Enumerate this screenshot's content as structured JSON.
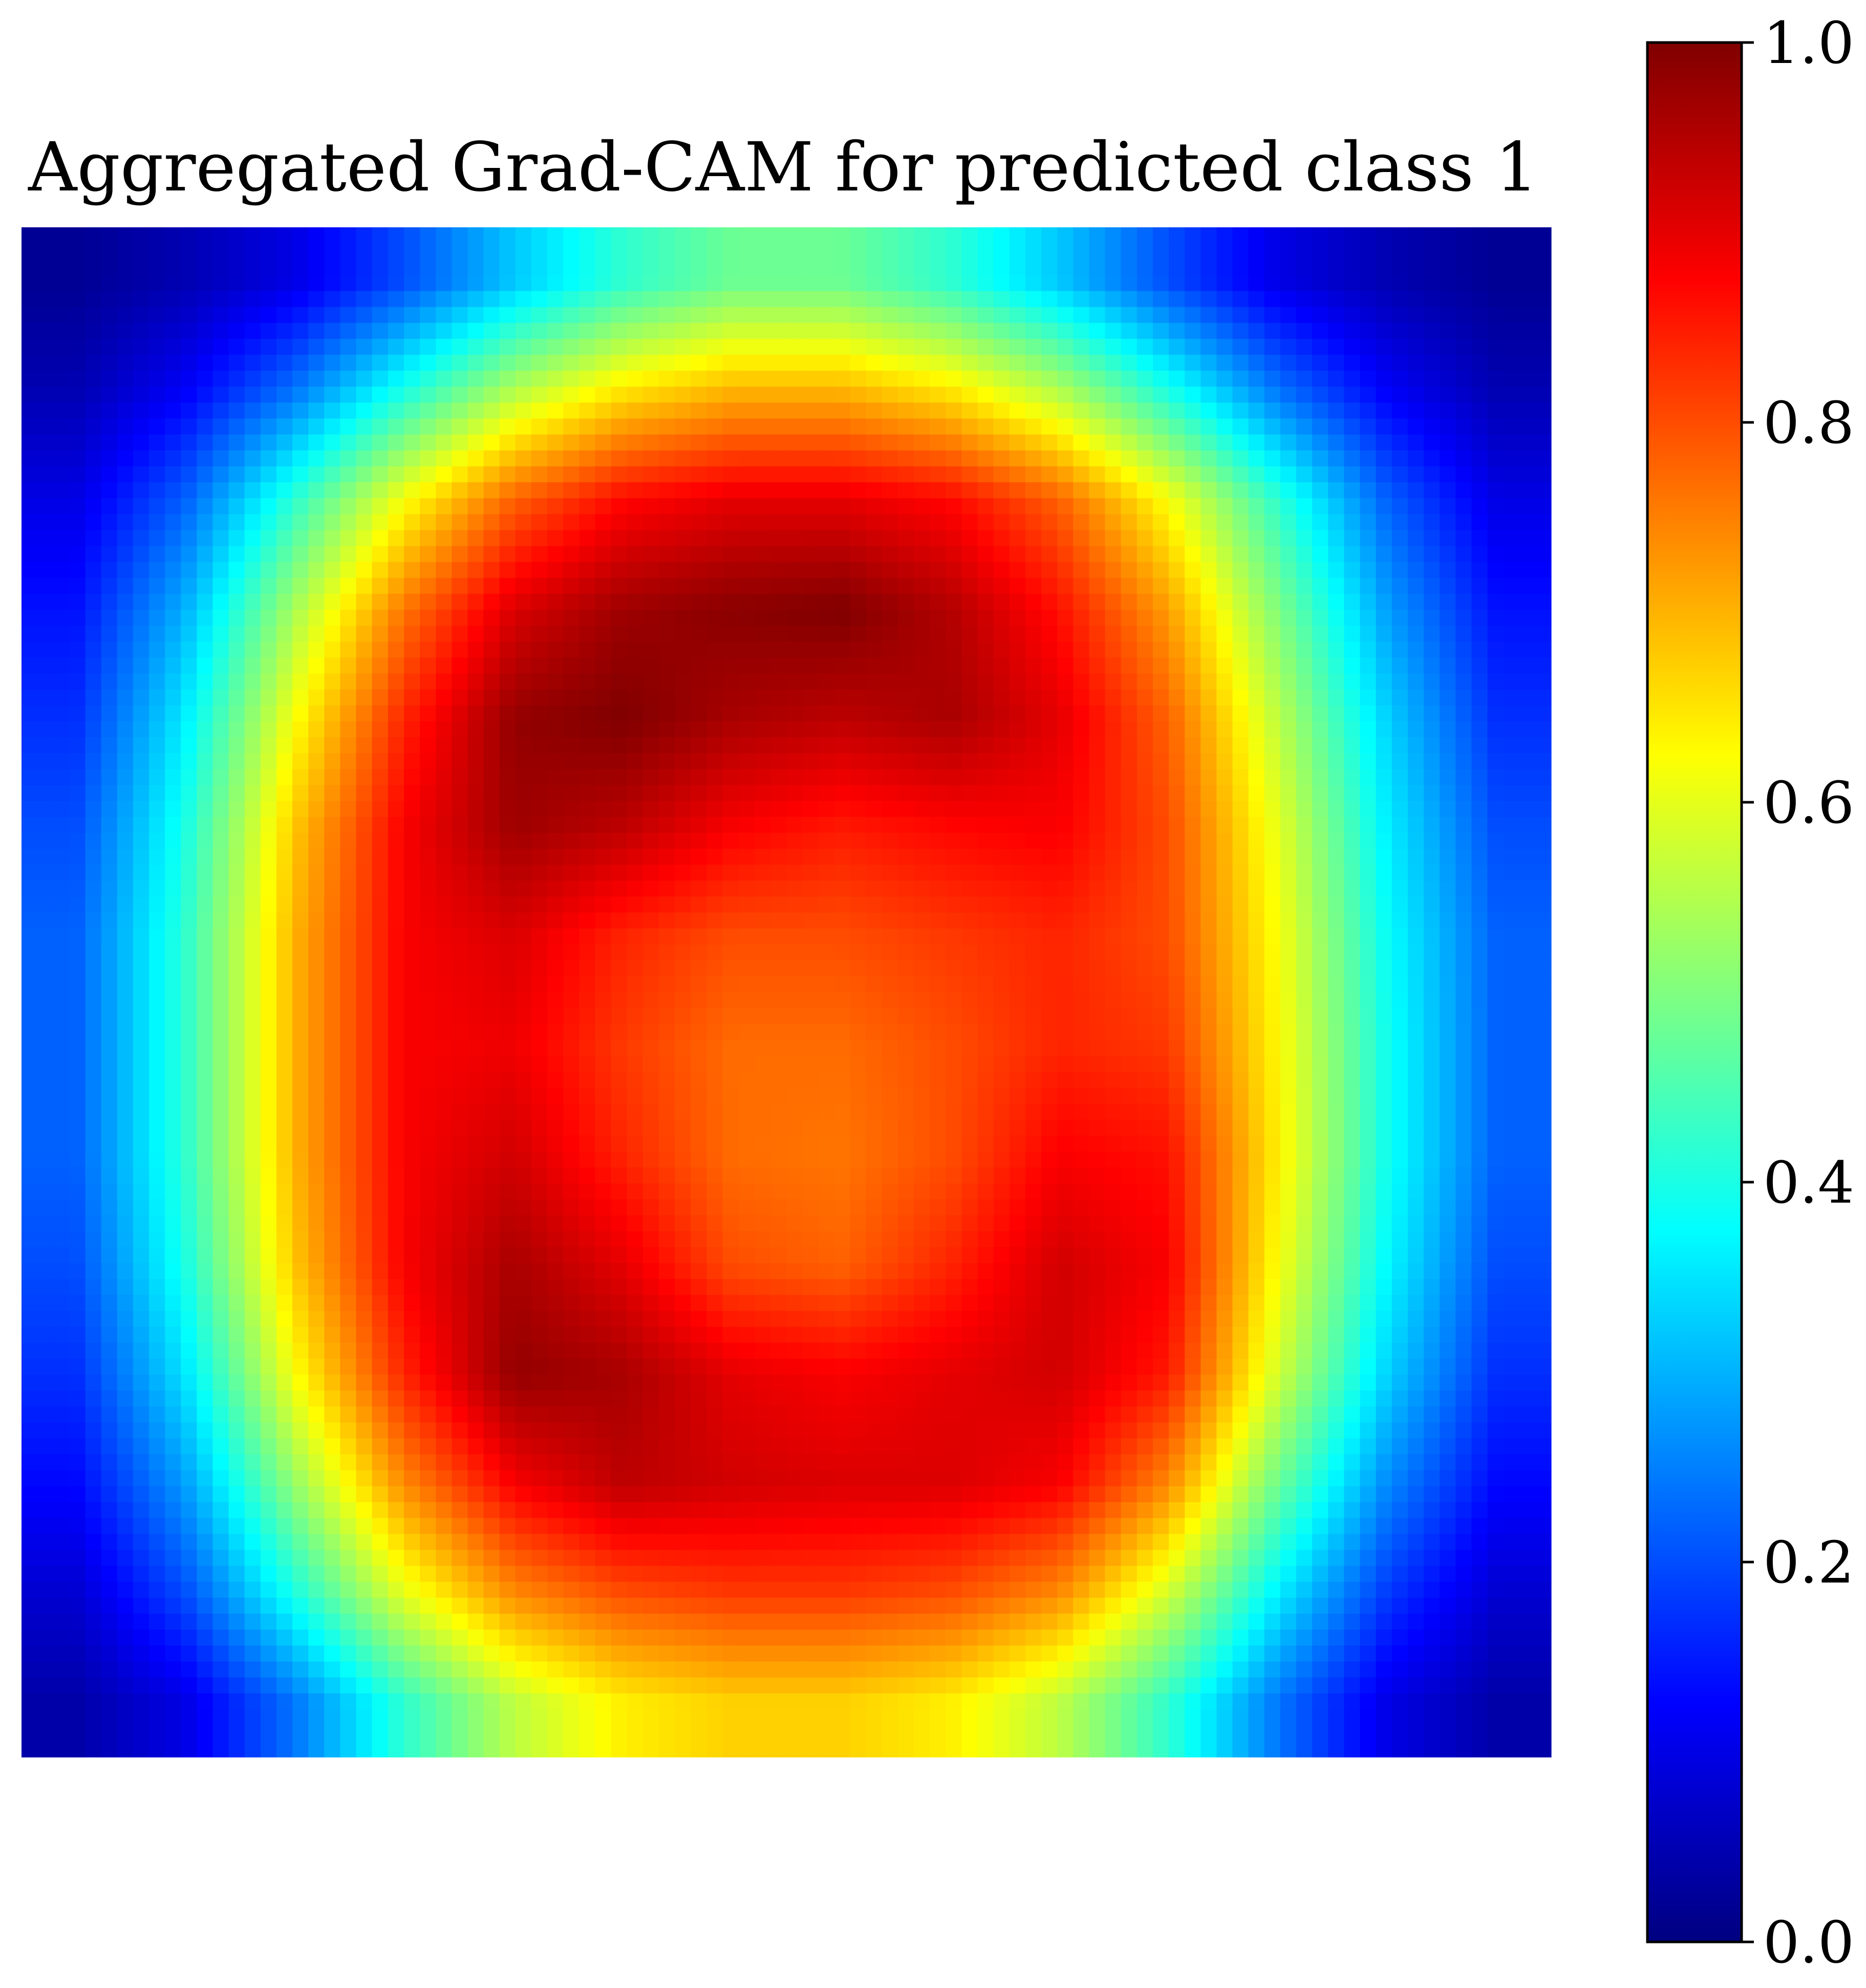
{
  "chart_data": {
    "type": "heatmap",
    "title": "Aggregated Grad-CAM for predicted class 1",
    "xlabel": "",
    "ylabel": "",
    "axes_visible": false,
    "grid": false,
    "colormap": "jet",
    "colorbar": {
      "range": [
        0.0,
        1.0
      ],
      "ticks": [
        0.0,
        0.2,
        0.4,
        0.6,
        0.8,
        1.0
      ],
      "tick_labels": [
        "0.0",
        "0.2",
        "0.4",
        "0.6",
        "0.8",
        "1.0"
      ],
      "placement": "right"
    },
    "grid_size": [
      14,
      14
    ],
    "values": [
      [
        0.02,
        0.05,
        0.1,
        0.2,
        0.32,
        0.42,
        0.48,
        0.48,
        0.42,
        0.32,
        0.2,
        0.1,
        0.05,
        0.02
      ],
      [
        0.05,
        0.12,
        0.24,
        0.4,
        0.55,
        0.65,
        0.7,
        0.7,
        0.65,
        0.55,
        0.4,
        0.24,
        0.12,
        0.05
      ],
      [
        0.1,
        0.22,
        0.42,
        0.62,
        0.78,
        0.87,
        0.9,
        0.9,
        0.87,
        0.78,
        0.62,
        0.42,
        0.22,
        0.1
      ],
      [
        0.14,
        0.3,
        0.54,
        0.76,
        0.91,
        0.97,
        0.99,
        1.0,
        0.95,
        0.86,
        0.72,
        0.5,
        0.28,
        0.14
      ],
      [
        0.17,
        0.36,
        0.62,
        0.84,
        0.98,
        1.0,
        0.96,
        0.94,
        0.96,
        0.9,
        0.78,
        0.56,
        0.33,
        0.17
      ],
      [
        0.2,
        0.4,
        0.68,
        0.88,
        0.97,
        0.94,
        0.88,
        0.85,
        0.87,
        0.88,
        0.8,
        0.6,
        0.36,
        0.2
      ],
      [
        0.22,
        0.42,
        0.7,
        0.88,
        0.91,
        0.84,
        0.8,
        0.8,
        0.82,
        0.84,
        0.8,
        0.62,
        0.38,
        0.22
      ],
      [
        0.22,
        0.42,
        0.7,
        0.88,
        0.89,
        0.82,
        0.77,
        0.77,
        0.8,
        0.84,
        0.82,
        0.63,
        0.39,
        0.22
      ],
      [
        0.22,
        0.42,
        0.7,
        0.88,
        0.92,
        0.84,
        0.77,
        0.76,
        0.8,
        0.88,
        0.86,
        0.64,
        0.39,
        0.22
      ],
      [
        0.2,
        0.4,
        0.68,
        0.88,
        0.96,
        0.9,
        0.8,
        0.78,
        0.84,
        0.92,
        0.88,
        0.62,
        0.37,
        0.2
      ],
      [
        0.17,
        0.35,
        0.62,
        0.84,
        0.98,
        0.96,
        0.9,
        0.88,
        0.9,
        0.92,
        0.85,
        0.58,
        0.33,
        0.17
      ],
      [
        0.13,
        0.28,
        0.52,
        0.74,
        0.88,
        0.94,
        0.92,
        0.91,
        0.91,
        0.88,
        0.74,
        0.48,
        0.26,
        0.13
      ],
      [
        0.08,
        0.2,
        0.4,
        0.6,
        0.74,
        0.8,
        0.82,
        0.82,
        0.8,
        0.74,
        0.58,
        0.36,
        0.18,
        0.08
      ],
      [
        0.04,
        0.1,
        0.24,
        0.42,
        0.56,
        0.64,
        0.67,
        0.67,
        0.64,
        0.56,
        0.42,
        0.24,
        0.1,
        0.04
      ]
    ]
  }
}
